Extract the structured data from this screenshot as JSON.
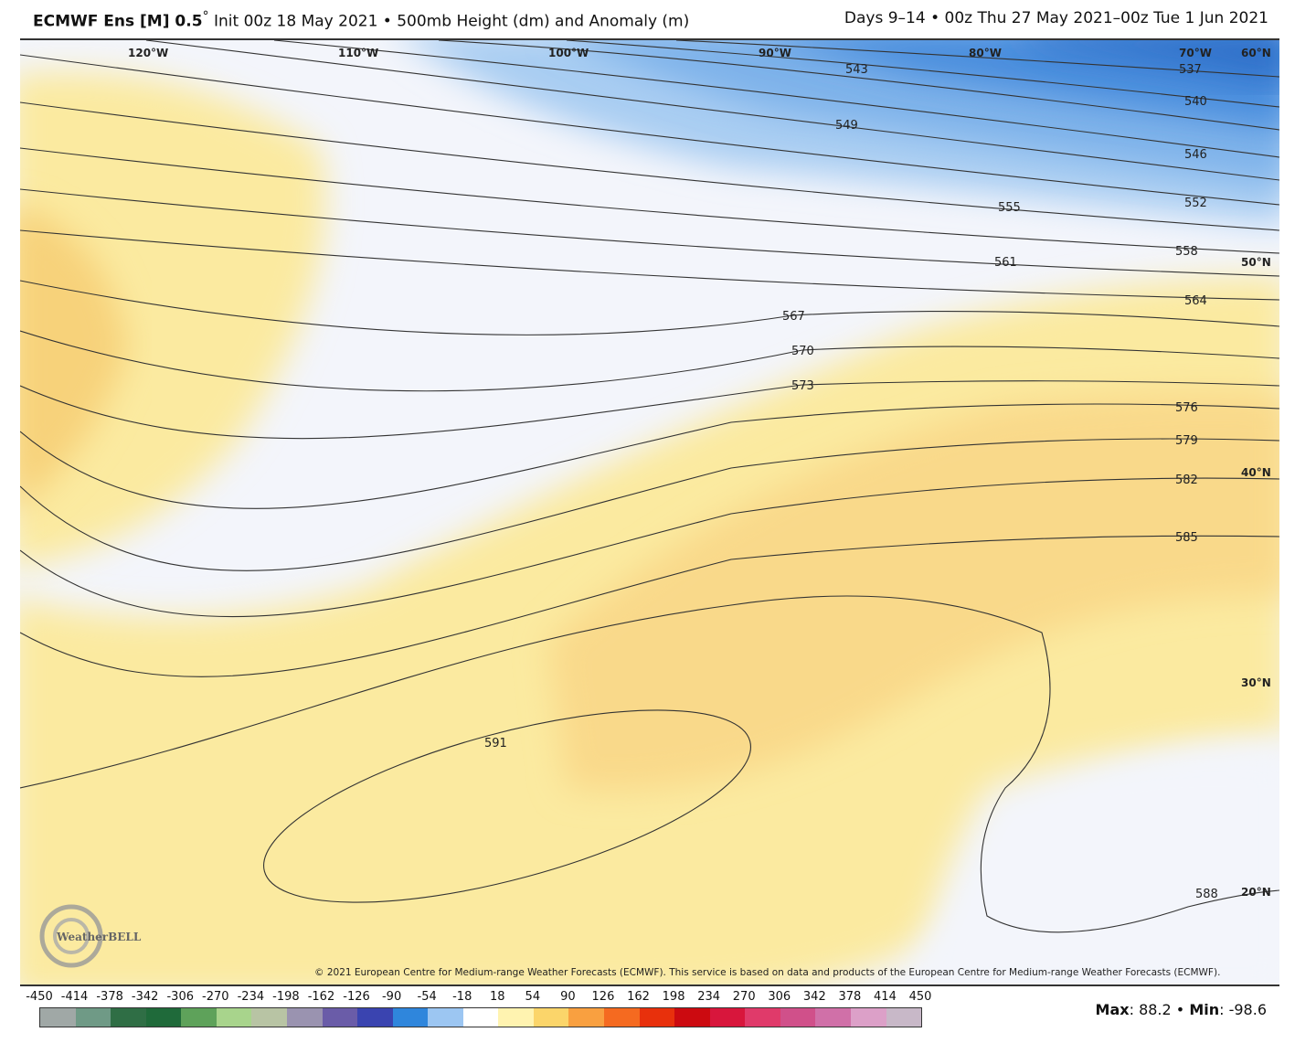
{
  "header": {
    "model": "ECMWF Ens [M] 0.5",
    "degree": "°",
    "description": "Init 00z 18 May 2021 • 500mb Height (dm) and Anomaly (m)",
    "valid": "Days 9–14 • 00z Thu 27 May 2021–00z Tue 1 Jun 2021"
  },
  "map": {
    "longitude_labels": [
      "120°W",
      "110°W",
      "100°W",
      "90°W",
      "80°W",
      "70°W"
    ],
    "latitude_labels": [
      "60°N",
      "50°N",
      "40°N",
      "30°N",
      "20°N"
    ],
    "contour_labels": [
      "537",
      "540",
      "543",
      "546",
      "549",
      "552",
      "555",
      "558",
      "561",
      "564",
      "567",
      "570",
      "573",
      "576",
      "579",
      "582",
      "585",
      "588",
      "591"
    ],
    "logo": "WeatherBELL",
    "copyright": "© 2021 European Centre for Medium-range Weather Forecasts (ECMWF). This service is based on data and products of the European Centre for Medium-range Weather Forecasts (ECMWF).",
    "colors": {
      "negative_anomaly": "#3d7fd6",
      "positive_anomaly": "#f7c95a",
      "neutral": "#f3f5fb"
    }
  },
  "colorbar": {
    "labels": [
      "-450",
      "-414",
      "-378",
      "-342",
      "-306",
      "-270",
      "-234",
      "-198",
      "-162",
      "-126",
      "-90",
      "-54",
      "-18",
      "18",
      "54",
      "90",
      "126",
      "162",
      "198",
      "234",
      "270",
      "306",
      "342",
      "378",
      "414",
      "450"
    ],
    "colors": [
      "#a0a8a6",
      "#6f9a86",
      "#2f6e45",
      "#1f6a3a",
      "#5ea25a",
      "#a8d48c",
      "#b8c4a4",
      "#9a93b0",
      "#6a5ca8",
      "#3a44b0",
      "#2f86dc",
      "#9cc6f2",
      "#ffffff",
      "#fff3b0",
      "#fbd56a",
      "#f9a040",
      "#f56a20",
      "#e8300c",
      "#cc0a10",
      "#d8163c",
      "#e03a6a",
      "#d0508a",
      "#d070a8",
      "#dca0c8",
      "#c8b8c8"
    ]
  },
  "stats": {
    "max_label": "Max",
    "max": "88.2",
    "min_label": "Min",
    "min": "-98.6",
    "sep": "•"
  }
}
